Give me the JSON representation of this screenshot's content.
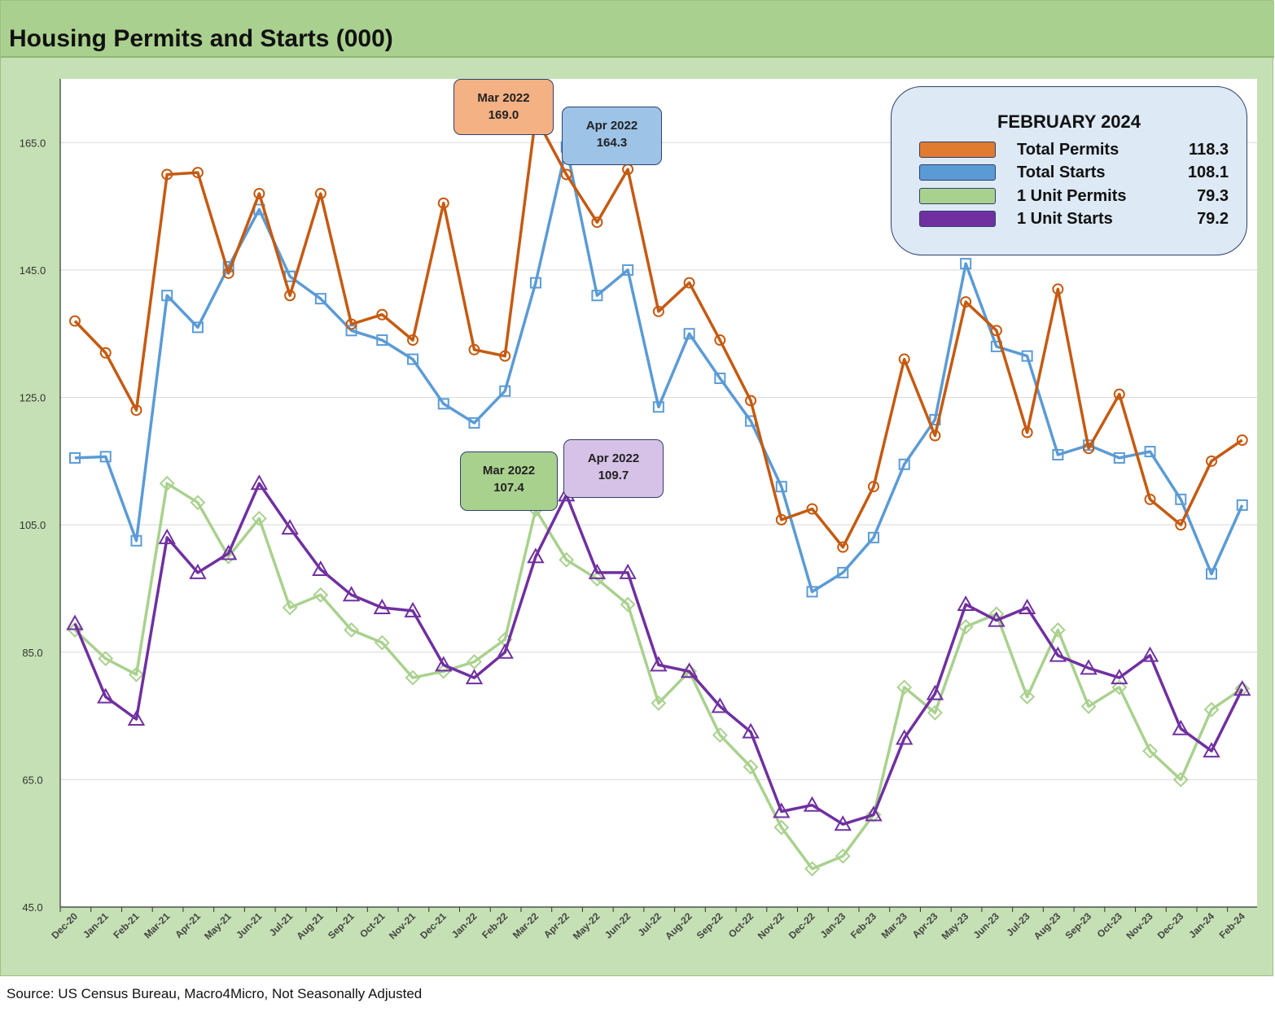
{
  "title": "Housing Permits and Starts (000)",
  "source": "Source: US Census Bureau, Macro4Micro, Not Seasonally Adjusted",
  "legend": {
    "title": "FEBRUARY 2024",
    "items": [
      {
        "label": "Total Permits",
        "value": "118.3",
        "color": "#c55a11"
      },
      {
        "label": "Total Starts",
        "value": "108.1",
        "color": "#5b9bd5"
      },
      {
        "label": "1 Unit Permits",
        "value": "79.3",
        "color": "#a9d18e"
      },
      {
        "label": "1 Unit Starts",
        "value": "79.2",
        "color": "#7030a0"
      }
    ]
  },
  "callouts": [
    {
      "line1": "Mar 2022",
      "line2": "169.0",
      "fill": "#f4b183"
    },
    {
      "line1": "Apr 2022",
      "line2": "164.3",
      "fill": "#9dc3e6"
    },
    {
      "line1": "Mar 2022",
      "line2": "107.4",
      "fill": "#a9d18e"
    },
    {
      "line1": "Apr 2022",
      "line2": "109.7",
      "fill": "#d5c2e6"
    }
  ],
  "chart_data": {
    "type": "line",
    "ylim": [
      45,
      175
    ],
    "yticks": [
      "45.0",
      "65.0",
      "85.0",
      "105.0",
      "125.0",
      "145.0",
      "165.0"
    ],
    "grid": true,
    "legend_position": "top-right",
    "categories": [
      "Dec-20",
      "Jan-21",
      "Feb-21",
      "Mar-21",
      "Apr-21",
      "May-21",
      "Jun-21",
      "Jul-21",
      "Aug-21",
      "Sep-21",
      "Oct-21",
      "Nov-21",
      "Dec-21",
      "Jan-22",
      "Feb-22",
      "Mar-22",
      "Apr-22",
      "May-22",
      "Jun-22",
      "Jul-22",
      "Aug-22",
      "Sep-22",
      "Oct-22",
      "Nov-22",
      "Dec-22",
      "Jan-23",
      "Feb-23",
      "Mar-23",
      "Apr-23",
      "May-23",
      "Jun-23",
      "Jul-23",
      "Aug-23",
      "Sep-23",
      "Oct-23",
      "Nov-23",
      "Dec-23",
      "Jan-24",
      "Feb-24"
    ],
    "series": [
      {
        "name": "Total Permits",
        "color": "#c55a11",
        "marker": "circle",
        "values": [
          137.0,
          132.0,
          123.0,
          160.0,
          160.3,
          144.5,
          157.0,
          141.0,
          157.0,
          136.5,
          138.0,
          134.0,
          155.5,
          132.5,
          131.5,
          169.0,
          160.0,
          152.5,
          160.8,
          138.5,
          143.0,
          134.0,
          124.5,
          105.8,
          107.5,
          101.5,
          111.0,
          131.0,
          119.0,
          140.0,
          135.5,
          119.5,
          142.0,
          117.0,
          125.5,
          109.0,
          105.0,
          115.0,
          118.3
        ]
      },
      {
        "name": "Total Starts",
        "color": "#5b9bd5",
        "marker": "square",
        "values": [
          115.5,
          115.7,
          102.5,
          141.0,
          136.0,
          145.5,
          154.5,
          144.0,
          140.5,
          135.5,
          134.0,
          131.0,
          124.0,
          121.0,
          126.0,
          143.0,
          164.3,
          141.0,
          145.0,
          123.5,
          135.0,
          128.0,
          121.3,
          111.0,
          94.5,
          97.5,
          103.0,
          114.5,
          121.5,
          146.0,
          133.0,
          131.5,
          116.0,
          117.5,
          115.5,
          116.5,
          109.0,
          97.3,
          108.1
        ]
      },
      {
        "name": "1 Unit Permits",
        "color": "#a9d18e",
        "marker": "diamond",
        "values": [
          88.5,
          84.0,
          81.5,
          111.5,
          108.5,
          100.0,
          106.0,
          92.0,
          94.0,
          88.5,
          86.5,
          81.0,
          82.0,
          83.5,
          87.0,
          107.4,
          99.5,
          96.5,
          92.5,
          77.0,
          82.0,
          72.0,
          67.0,
          57.5,
          51.0,
          53.0,
          59.5,
          79.5,
          75.5,
          89.0,
          91.0,
          78.0,
          88.5,
          76.5,
          79.5,
          69.5,
          65.0,
          76.0,
          79.3
        ]
      },
      {
        "name": "1 Unit Starts",
        "color": "#7030a0",
        "marker": "triangle",
        "values": [
          89.5,
          78.0,
          74.5,
          103.0,
          97.5,
          100.5,
          111.5,
          104.5,
          98.0,
          94.0,
          92.0,
          91.5,
          83.0,
          81.0,
          85.0,
          100.0,
          109.7,
          97.5,
          97.5,
          83.0,
          82.0,
          76.5,
          72.5,
          60.0,
          61.0,
          58.0,
          59.5,
          71.5,
          78.5,
          92.5,
          90.0,
          92.0,
          84.5,
          82.5,
          81.0,
          84.5,
          73.0,
          69.5,
          79.2
        ]
      }
    ]
  }
}
